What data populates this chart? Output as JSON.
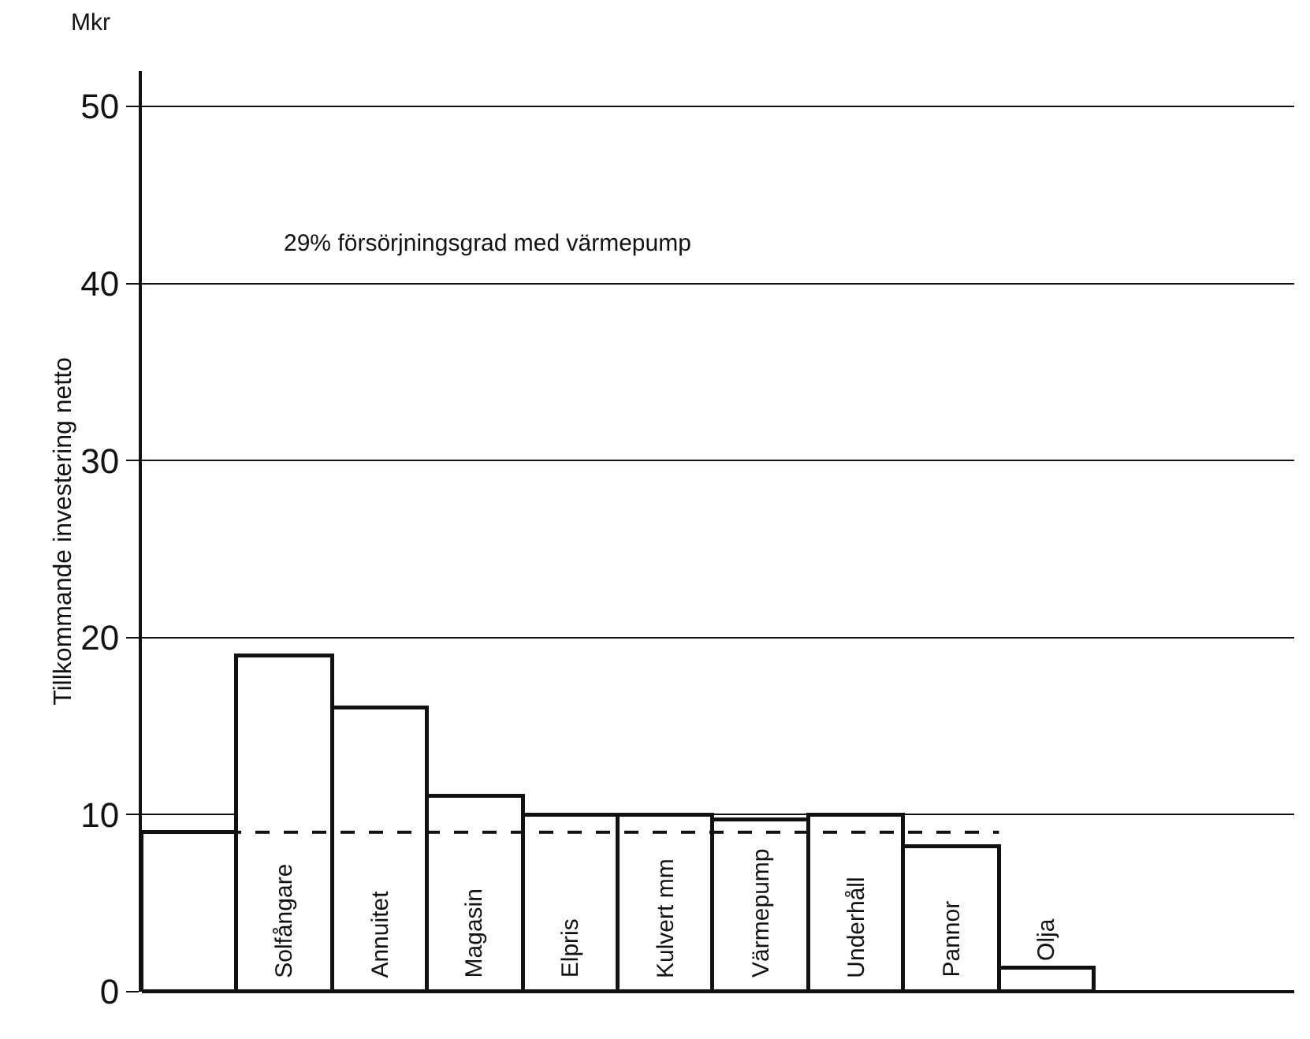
{
  "chart_data": {
    "type": "bar",
    "ylabel": "Tillkommande investering netto",
    "categories": [
      null,
      "Solfångare",
      "Annuitet",
      "Magasin",
      "Elpris",
      "Kulvert mm",
      "Värmepump",
      "Underhåll",
      "Pannor",
      "Olja"
    ],
    "values": [
      9,
      19,
      16,
      11,
      10,
      10,
      9.7,
      10,
      8.2,
      1.3
    ],
    "color": "#ffffff",
    "ylim": [
      0,
      52
    ],
    "yticks": [
      0,
      10,
      20,
      30,
      40,
      50
    ],
    "grid": "y",
    "ref_lines": [
      {
        "axis": "y",
        "value": 9,
        "line_style": "dashed"
      }
    ],
    "annotations": [
      "Mkr",
      "29% försörjningsgrad med värmepump"
    ]
  }
}
